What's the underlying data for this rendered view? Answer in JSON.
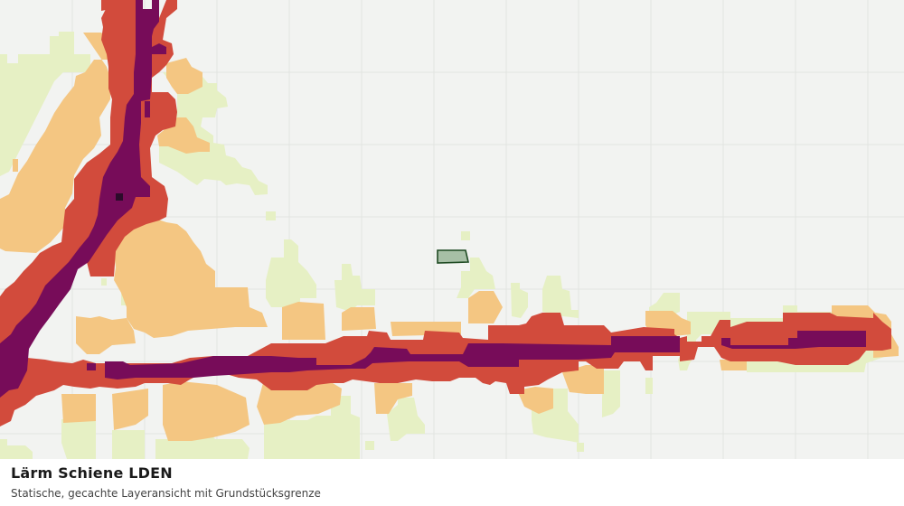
{
  "map": {
    "background": "#f2f3f1",
    "grid_color": "#e2e4e1",
    "noise_classes": [
      {
        "key": "c1",
        "color": "#e6f0c4"
      },
      {
        "key": "c2",
        "color": "#f4c682"
      },
      {
        "key": "c3",
        "color": "#d24b3c"
      },
      {
        "key": "c4",
        "color": "#770c59"
      },
      {
        "key": "c5",
        "color": "#2b0b2a"
      }
    ],
    "parcel": {
      "fill": "#a7bfa6",
      "stroke": "#1e4a22"
    }
  },
  "caption": {
    "title": "Lärm Schiene LDEN",
    "subtitle": "Statische, gecachte Layeransicht mit Grundstücksgrenze"
  }
}
